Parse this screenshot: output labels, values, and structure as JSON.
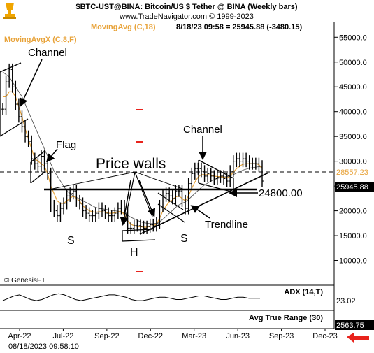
{
  "header": {
    "line1": "$BTC-UST@BINA:  Bitcoin/US $ Tether @ BINA  (Weekly bars)",
    "line2": "www.TradeNavigator.com © 1999-2023",
    "legend_movavgx": "MovingAvgX (C,8,F)",
    "legend_movavg": "MovingAvg (C,18)",
    "quote": "8/18/23 09:58 = 25945.88 (-3480.15)"
  },
  "watermark": "© GenesisFT",
  "timestamp": "08/18/2023 09:58:10",
  "colors": {
    "price": "#000000",
    "ma8": "#e8a33a",
    "ma18": "#555555",
    "accent_red": "#e8231c",
    "accent_orange": "#ff7f00",
    "grid": "#cfcfcf",
    "brand_orange": "#f0a500"
  },
  "chart_data": [
    {
      "type": "bar",
      "subtype": "ohlc",
      "title": "$BTC-UST@BINA:  Bitcoin/US $ Tether @ BINA  (Weekly bars)",
      "x_ticks": [
        "Apr-22",
        "Jul-22",
        "Sep-22",
        "Dec-22",
        "Mar-23",
        "Jun-23",
        "Sep-23",
        "Dec-23"
      ],
      "y_ticks": [
        "55000.0",
        "50000.0",
        "45000.0",
        "40000.0",
        "35000.0",
        "30000.0",
        "25000.0",
        "20000.0",
        "15000.0",
        "10000.0"
      ],
      "ylim": [
        5000,
        58000
      ],
      "series": [
        {
          "name": "Price",
          "values": [
            40500,
            46000,
            48500,
            45000,
            41500,
            39000,
            37000,
            35000,
            34000,
            30500,
            29500,
            29000,
            31000,
            29500,
            27500,
            21000,
            20000,
            19000,
            20500,
            21500,
            23000,
            23500,
            24000,
            22000,
            21500,
            20000,
            19500,
            19000,
            19000,
            19500,
            20500,
            20000,
            19500,
            19000,
            19000,
            19500,
            20500,
            21000,
            19500,
            16500,
            16500,
            17000,
            17000,
            16800,
            16500,
            16800,
            17200,
            17000,
            17500,
            21000,
            23000,
            23500,
            23000,
            22500,
            24000,
            24000,
            22000,
            20500,
            25500,
            27500,
            28500,
            28500,
            28000,
            27000,
            27500,
            27000,
            26500,
            26800,
            27000,
            26500,
            26000,
            28000,
            30000,
            30500,
            30000,
            30500,
            30000,
            29500,
            29500,
            29500,
            29000,
            26000
          ]
        },
        {
          "name": "MovingAvgX (C,8,F)",
          "values": [
            43000,
            43000,
            44000,
            44000,
            43000,
            41000,
            39000,
            36500,
            34500,
            32500,
            30500,
            30000,
            29500,
            29000,
            27500,
            25000,
            23500,
            22000,
            21500,
            21500,
            22000,
            22500,
            23000,
            22500,
            22000,
            21000,
            20500,
            20000,
            19800,
            19700,
            19800,
            19800,
            19700,
            19500,
            19500,
            19600,
            19800,
            19900,
            19200,
            18000,
            17300,
            17000,
            16800,
            16800,
            16700,
            16700,
            16900,
            17000,
            17300,
            18500,
            20000,
            21000,
            21800,
            22200,
            22800,
            23000,
            22500,
            22000,
            23000,
            24500,
            25800,
            26800,
            27300,
            27300,
            27300,
            27200,
            27000,
            26900,
            26900,
            26800,
            26600,
            27000,
            27800,
            28500,
            29000,
            29400,
            29500,
            29500,
            29500,
            29500,
            29300,
            28500
          ]
        },
        {
          "name": "MovingAvg (C,18)",
          "values": [
            48000,
            47500,
            47000,
            46000,
            45000,
            44000,
            43000,
            41500,
            40000,
            38500,
            37000,
            35500,
            34000,
            32500,
            31000,
            29500,
            28000,
            27000,
            26000,
            25000,
            24000,
            23500,
            23000,
            22700,
            22400,
            22000,
            21700,
            21400,
            21000,
            20700,
            20500,
            20400,
            20300,
            20200,
            20100,
            20000,
            19900,
            19800,
            19500,
            19100,
            18700,
            18400,
            18100,
            17800,
            17600,
            17500,
            17400,
            17400,
            17500,
            17800,
            18300,
            18900,
            19500,
            20100,
            20700,
            21200,
            21500,
            21800,
            22300,
            22900,
            23500,
            24100,
            24700,
            25200,
            25600,
            26000,
            26300,
            26500,
            26700,
            26800,
            26900,
            27000,
            27300,
            27600,
            27900,
            28200,
            28400,
            28600,
            28700,
            28800,
            28900,
            28800
          ]
        }
      ],
      "price_labels": [
        "28557.23",
        "25945.88"
      ],
      "annotations": [
        "Channel",
        "Flag",
        "Price walls",
        "Channel",
        "24800.00",
        "Trendline",
        "S",
        "H",
        "S"
      ]
    },
    {
      "type": "line",
      "title": "ADX (14,T)",
      "last_value": "23.02",
      "values": [
        21,
        23,
        25,
        26,
        24,
        22,
        21,
        22,
        24,
        26,
        27,
        26,
        24,
        22,
        21,
        22,
        23,
        24,
        25,
        26,
        26,
        25,
        24,
        22,
        21,
        21,
        22,
        23,
        24,
        24,
        23,
        22,
        22,
        23,
        24,
        25,
        25,
        24,
        23,
        22,
        22,
        23,
        24,
        24,
        23,
        23,
        23
      ]
    },
    {
      "type": "line",
      "title": "Avg True Range (30)",
      "last_value": "2563.75"
    }
  ]
}
